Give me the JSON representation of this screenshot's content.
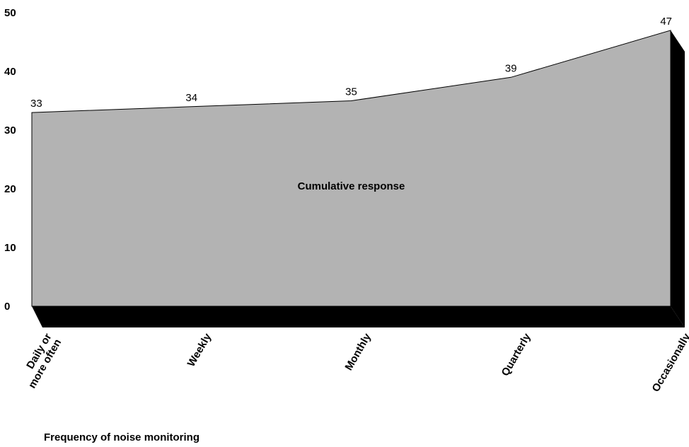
{
  "chart_data": {
    "type": "area",
    "categories": [
      "Daily or more often",
      "Weekly",
      "Monthly",
      "Quarterly",
      "Occasionally"
    ],
    "category_lines": [
      [
        "Daily or",
        "more often"
      ],
      [
        "Weekly"
      ],
      [
        "Monthly"
      ],
      [
        "Quarterly"
      ],
      [
        "Occasionally"
      ]
    ],
    "series": [
      {
        "name": "Cumulative response",
        "values": [
          33,
          34,
          35,
          39,
          47
        ]
      }
    ],
    "xlabel": "Frequency of noise monitoring",
    "ylabel": "",
    "ylim": [
      0,
      50
    ],
    "yticks": [
      0,
      10,
      20,
      30,
      40,
      50
    ],
    "grid": false,
    "style": "3d-area",
    "colors": {
      "fill": "#b3b3b3",
      "shadow": "#000000",
      "stroke": "#000000"
    }
  }
}
